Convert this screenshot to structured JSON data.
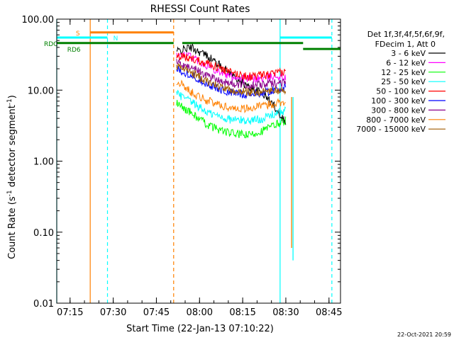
{
  "chart_data": {
    "type": "line",
    "title": "RHESSI Count Rates",
    "xlabel": "Start Time (22-Jan-13 07:10:22)",
    "ylabel_main": "Count Rate (s",
    "ylabel_sup1": "-1",
    "ylabel_mid": " detector segment",
    "ylabel_sup2": "-1",
    "ylabel_end": ")",
    "yscale": "log",
    "ylim": [
      0.01,
      100
    ],
    "xlim": [
      "07:10:22",
      "08:49:00"
    ],
    "x_ticks": [
      "07:15",
      "07:30",
      "07:45",
      "08:00",
      "08:15",
      "08:30",
      "08:45"
    ],
    "y_ticks": [
      "100.00",
      "10.00",
      "1.00",
      "0.10",
      "0.01"
    ],
    "legend": {
      "header_line1": "Det 1f,3f,4f,5f,6f,9f,",
      "header_line2": "FDecim 1, Att 0",
      "position": "right"
    },
    "series": [
      {
        "name": "3 - 6 keV",
        "color": "#000000",
        "values": [
          [
            "07:52",
            35
          ],
          [
            "07:57",
            40
          ],
          [
            "08:03",
            30
          ],
          [
            "08:10",
            18
          ],
          [
            "08:17",
            11
          ],
          [
            "08:22",
            9
          ],
          [
            "08:26",
            6
          ],
          [
            "08:30",
            3.5
          ]
        ]
      },
      {
        "name": "6 - 12 keV",
        "color": "#ff00ff",
        "values": [
          [
            "07:52",
            31
          ],
          [
            "07:57",
            30
          ],
          [
            "08:03",
            22
          ],
          [
            "08:10",
            16
          ],
          [
            "08:17",
            14.5
          ],
          [
            "08:22",
            14.5
          ],
          [
            "08:26",
            16
          ],
          [
            "08:30",
            15
          ]
        ]
      },
      {
        "name": "12 - 25 keV",
        "color": "#00ff00",
        "values": [
          [
            "07:52",
            6.5
          ],
          [
            "07:57",
            4.8
          ],
          [
            "08:03",
            3.2
          ],
          [
            "08:10",
            2.5
          ],
          [
            "08:17",
            2.3
          ],
          [
            "08:22",
            2.7
          ],
          [
            "08:26",
            3.2
          ],
          [
            "08:30",
            3.8
          ]
        ]
      },
      {
        "name": "25 - 50 keV",
        "color": "#00ffff",
        "values": [
          [
            "07:52",
            9
          ],
          [
            "07:57",
            6.8
          ],
          [
            "08:03",
            4.8
          ],
          [
            "08:10",
            3.9
          ],
          [
            "08:17",
            3.7
          ],
          [
            "08:22",
            4.0
          ],
          [
            "08:26",
            4.6
          ],
          [
            "08:30",
            5.2
          ]
        ]
      },
      {
        "name": "50 - 100 keV",
        "color": "#ff0000",
        "values": [
          [
            "07:52",
            30
          ],
          [
            "07:57",
            28
          ],
          [
            "08:03",
            24
          ],
          [
            "08:10",
            18
          ],
          [
            "08:17",
            15.5
          ],
          [
            "08:22",
            16
          ],
          [
            "08:26",
            17
          ],
          [
            "08:30",
            18
          ]
        ]
      },
      {
        "name": "100 - 300 keV",
        "color": "#0000ff",
        "values": [
          [
            "07:52",
            20
          ],
          [
            "07:57",
            16.5
          ],
          [
            "08:03",
            12
          ],
          [
            "08:10",
            9.3
          ],
          [
            "08:17",
            8.7
          ],
          [
            "08:22",
            9.2
          ],
          [
            "08:26",
            10
          ],
          [
            "08:30",
            11
          ]
        ]
      },
      {
        "name": "300 - 800 keV",
        "color": "#8b008b",
        "values": [
          [
            "07:52",
            24
          ],
          [
            "07:57",
            21
          ],
          [
            "08:03",
            16
          ],
          [
            "08:10",
            12.5
          ],
          [
            "08:17",
            11.5
          ],
          [
            "08:22",
            12
          ],
          [
            "08:26",
            12.5
          ],
          [
            "08:30",
            13
          ]
        ]
      },
      {
        "name": "800 - 7000 keV",
        "color": "#ff8000",
        "values": [
          [
            "07:52",
            13.5
          ],
          [
            "07:57",
            9.5
          ],
          [
            "08:03",
            7
          ],
          [
            "08:10",
            5.7
          ],
          [
            "08:17",
            5.5
          ],
          [
            "08:22",
            6
          ],
          [
            "08:26",
            6.5
          ],
          [
            "08:30",
            7
          ]
        ]
      },
      {
        "name": "7000 - 15000 keV",
        "color": "#a05a00",
        "values": [
          [
            "07:52",
            22
          ],
          [
            "07:57",
            18
          ],
          [
            "08:03",
            13
          ],
          [
            "08:10",
            10
          ],
          [
            "08:17",
            9.3
          ],
          [
            "08:22",
            9.5
          ],
          [
            "08:26",
            10
          ],
          [
            "08:30",
            9.5
          ]
        ]
      }
    ],
    "annotations": [
      {
        "text": "S",
        "color": "#ff8000"
      },
      {
        "text": "N",
        "color": "#00ffff"
      },
      {
        "text": "RDC",
        "color": "#008000"
      },
      {
        "text": "RD6",
        "color": "#008000"
      }
    ],
    "attenuator_bars": [
      {
        "color": "#ff8000",
        "x0": "07:22",
        "x1": "07:51",
        "y": 65
      },
      {
        "color": "#00ffff",
        "x0": "07:10:22",
        "x1": "07:28",
        "y": 55
      },
      {
        "color": "#00ffff",
        "x0": "08:28",
        "x1": "08:46",
        "y": 55
      },
      {
        "color": "#008000",
        "x0": "07:10:22",
        "x1": "07:51",
        "y": 46
      },
      {
        "color": "#008000",
        "x0": "07:54",
        "x1": "08:36",
        "y": 46
      },
      {
        "color": "#008000",
        "x0": "08:36",
        "x1": "08:49",
        "y": 38
      }
    ],
    "vlines": [
      {
        "time": "07:10:22",
        "color": "#00ffff",
        "dashed": false
      },
      {
        "time": "07:22",
        "color": "#ff8000",
        "dashed": false
      },
      {
        "time": "07:28",
        "color": "#00ffff",
        "dashed": true
      },
      {
        "time": "07:51",
        "color": "#ff8000",
        "dashed": true
      },
      {
        "time": "08:28",
        "color": "#00ffff",
        "dashed": false
      },
      {
        "time": "08:46",
        "color": "#00ffff",
        "dashed": true
      }
    ],
    "drops": [
      {
        "time": "08:32",
        "color": "#ff8000",
        "bottom": 0.06
      },
      {
        "time": "08:32:30",
        "color": "#00ffff",
        "bottom": 0.04
      }
    ]
  },
  "footer": {
    "timestamp": "22-Oct-2021 20:59"
  }
}
